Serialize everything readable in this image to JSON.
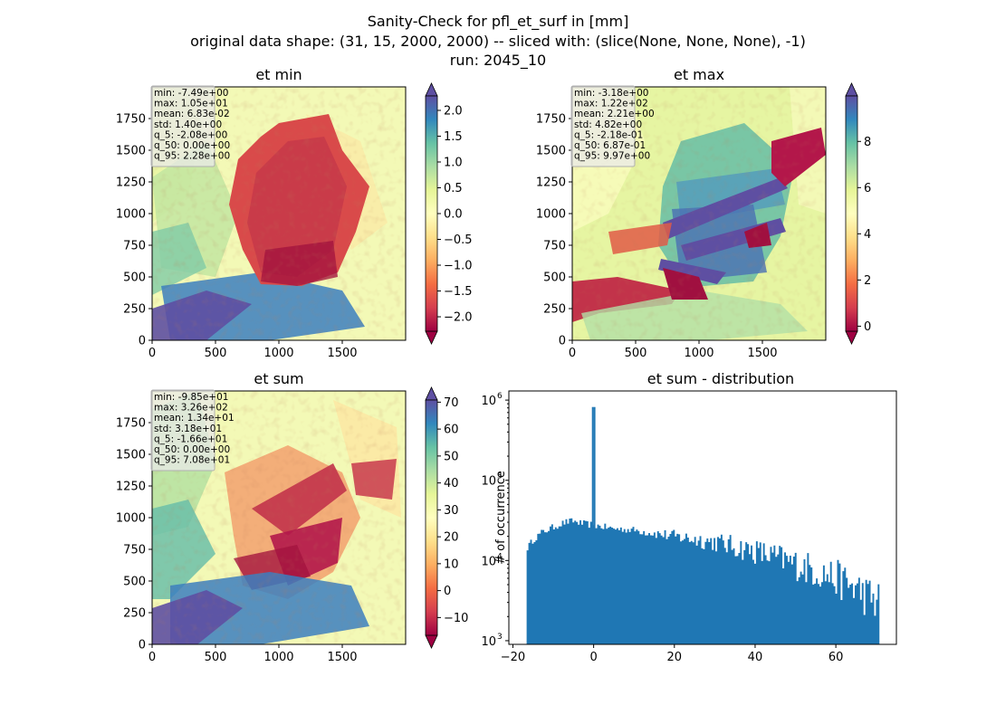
{
  "figure": {
    "title_lines": [
      "Sanity-Check for pfl_et_surf in [mm]",
      "original data shape: (31, 15, 2000, 2000) -- sliced with: (slice(None, None, None), -1)",
      "run: 2045_10"
    ]
  },
  "chart_data": [
    {
      "type": "heatmap",
      "title": "et min",
      "colormap": "Spectral",
      "xlim": [
        0,
        2000
      ],
      "ylim": [
        0,
        2000
      ],
      "xticks": [
        "0",
        "500",
        "1000",
        "1500"
      ],
      "yticks": [
        "0",
        "250",
        "500",
        "750",
        "1000",
        "1250",
        "1500",
        "1750"
      ],
      "colorbar": {
        "range": [
          -2.28,
          2.28
        ],
        "ticks": [
          "2.0",
          "1.5",
          "1.0",
          "0.5",
          "0.0",
          "−0.5",
          "−1.0",
          "−1.5",
          "−2.0"
        ],
        "extend": "both"
      },
      "stats": [
        "min: -7.49e+00",
        "max: 1.05e+01",
        "mean: 6.83e-02",
        "std: 1.40e+00",
        "q_5: -2.08e+00",
        "q_50: 0.00e+00",
        "q_95: 2.28e+00"
      ]
    },
    {
      "type": "heatmap",
      "title": "et max",
      "colormap": "Spectral",
      "xlim": [
        0,
        2000
      ],
      "ylim": [
        0,
        2000
      ],
      "xticks": [
        "0",
        "500",
        "1000",
        "1500"
      ],
      "yticks": [
        "0",
        "250",
        "500",
        "750",
        "1000",
        "1250",
        "1500",
        "1750"
      ],
      "colorbar": {
        "range": [
          -0.218,
          9.97
        ],
        "ticks": [
          "8",
          "6",
          "4",
          "2",
          "0"
        ],
        "extend": "both"
      },
      "stats": [
        "min: -3.18e+00",
        "max: 1.22e+02",
        "mean: 2.21e+00",
        "std: 4.82e+00",
        "q_5: -2.18e-01",
        "q_50: 6.87e-01",
        "q_95: 9.97e+00"
      ]
    },
    {
      "type": "heatmap",
      "title": "et sum",
      "colormap": "Spectral",
      "xlim": [
        0,
        2000
      ],
      "ylim": [
        0,
        2000
      ],
      "xticks": [
        "0",
        "500",
        "1000",
        "1500"
      ],
      "yticks": [
        "0",
        "250",
        "500",
        "750",
        "1000",
        "1250",
        "1500",
        "1750"
      ],
      "colorbar": {
        "range": [
          -16.6,
          70.8
        ],
        "ticks": [
          "70",
          "60",
          "50",
          "40",
          "30",
          "20",
          "10",
          "0",
          "−10"
        ],
        "extend": "both"
      },
      "stats": [
        "min: -9.85e+01",
        "max: 3.26e+02",
        "mean: 1.34e+01",
        "std: 3.18e+01",
        "q_5: -1.66e+01",
        "q_50: 0.00e+00",
        "q_95: 7.08e+01"
      ]
    },
    {
      "type": "bar",
      "title": "et sum - distribution",
      "ylabel": "# of occurrence",
      "yscale": "log",
      "xlim": [
        -21,
        75
      ],
      "ylim": [
        900,
        1300000
      ],
      "xticks": [
        "−20",
        "0",
        "20",
        "40",
        "60"
      ],
      "yticks": [
        "10",
        "10",
        "10",
        "10"
      ],
      "ytick_exponents": [
        "3",
        "4",
        "5",
        "6"
      ],
      "color": "#1f77b4",
      "bins": {
        "start": -16.6,
        "end": 70.8,
        "count": 200
      },
      "envelope_x": [
        -16.6,
        -15,
        -13,
        -10,
        -7,
        -5,
        -3,
        -1,
        0,
        1,
        5,
        10,
        20,
        30,
        40,
        45,
        50,
        55,
        60,
        65,
        68,
        70.8
      ],
      "envelope_y": [
        14000,
        18000,
        22000,
        26000,
        30000,
        31000,
        29000,
        28000,
        28000,
        27000,
        25000,
        24000,
        20000,
        17000,
        13000,
        11000,
        9000,
        7500,
        6000,
        4500,
        3500,
        3000
      ],
      "spike": {
        "x": 0,
        "count": 820000
      }
    }
  ]
}
